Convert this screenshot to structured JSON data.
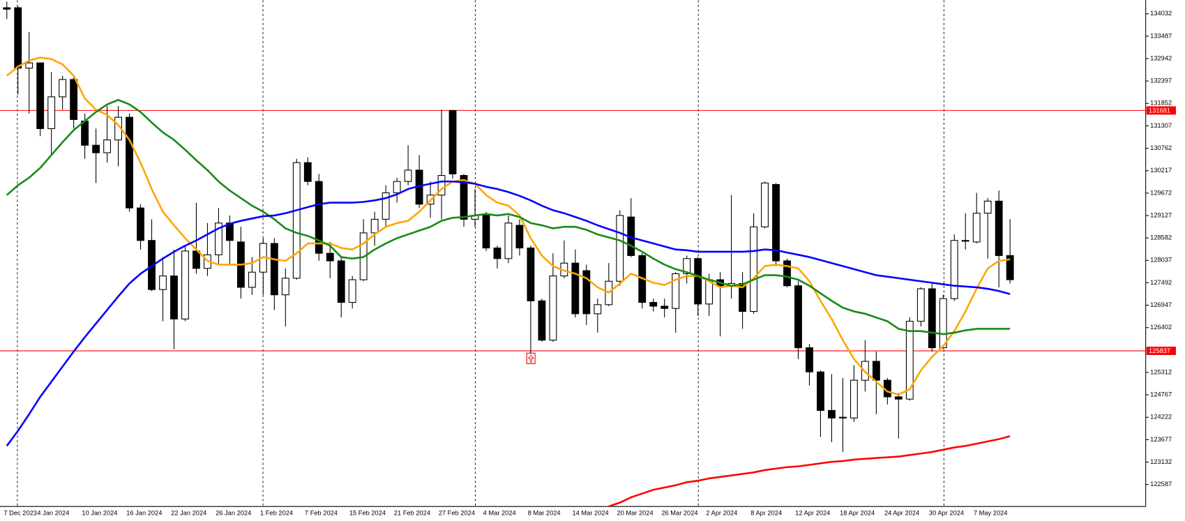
{
  "chart_data": {
    "type": "candlestick",
    "categories": [
      "7 Dec 2023",
      null,
      null,
      "4 Jan 2024",
      null,
      null,
      null,
      "10 Jan 2024",
      null,
      null,
      null,
      "16 Jan 2024",
      null,
      null,
      null,
      "22 Jan 2024",
      null,
      null,
      null,
      "26 Jan 2024",
      null,
      null,
      null,
      "1 Feb 2024",
      null,
      null,
      null,
      "7 Feb 2024",
      null,
      null,
      null,
      "15 Feb 2024",
      null,
      null,
      null,
      "21 Feb 2024",
      null,
      null,
      null,
      "27 Feb 2024",
      null,
      null,
      null,
      "4 Mar 2024",
      null,
      null,
      null,
      "8 Mar 2024",
      null,
      null,
      null,
      "14 Mar 2024",
      null,
      null,
      null,
      "20 Mar 2024",
      null,
      null,
      null,
      "26 Mar 2024",
      null,
      null,
      null,
      "2 Apr 2024",
      null,
      null,
      null,
      "8 Apr 2024",
      null,
      null,
      null,
      "12 Apr 2024",
      null,
      null,
      null,
      "18 Apr 2024",
      null,
      null,
      null,
      "24 Apr 2024",
      null,
      null,
      null,
      "30 Apr 2024",
      null,
      null,
      null,
      "7 May 2024",
      null,
      null,
      null
    ],
    "open": [
      134179,
      134179,
      132710,
      132838,
      131240,
      132012,
      132434,
      131424,
      130836,
      130653,
      130965,
      131516,
      129311,
      128521,
      127327,
      127658,
      126611,
      128264,
      127842,
      128172,
      128944,
      128484,
      127382,
      127750,
      128448,
      127199,
      127603,
      130413,
      129955,
      128209,
      128025,
      127015,
      127566,
      128705,
      129036,
      129679,
      129955,
      130230,
      129403,
      129623,
      131681,
      130101,
      129036,
      129164,
      128338,
      128080,
      128889,
      128338,
      127052,
      126097,
      127658,
      127970,
      127787,
      126739,
      126960,
      127529,
      129091,
      128154,
      127015,
      126923,
      126868,
      127713,
      128080,
      126976,
      127566,
      127419,
      127475,
      126795,
      128852,
      129881,
      128025,
      127419,
      125913,
      125325,
      124388,
      124204,
      124204,
      125123,
      125582,
      125123,
      124719,
      124664,
      126556,
      127346,
      125913,
      127107,
      128503,
      128484,
      129183,
      129477,
      128154
    ],
    "high": [
      134326,
      134216,
      133591,
      132838,
      132618,
      132526,
      132526,
      131608,
      131240,
      131791,
      131791,
      131608,
      129403,
      129036,
      128117,
      128301,
      128393,
      129440,
      128944,
      129311,
      129128,
      128852,
      128117,
      128576,
      128576,
      127842,
      130505,
      130542,
      130138,
      128485,
      128117,
      127658,
      129036,
      129219,
      129862,
      130046,
      130836,
      130597,
      129955,
      131699,
      131681,
      130138,
      129771,
      129219,
      128393,
      129128,
      129036,
      128393,
      127107,
      128209,
      128521,
      128301,
      127934,
      127107,
      127970,
      129256,
      129550,
      128209,
      127107,
      127107,
      127750,
      128154,
      128117,
      127713,
      127750,
      129624,
      127750,
      129183,
      129954,
      129918,
      128080,
      127530,
      126005,
      125362,
      125270,
      125178,
      125490,
      126097,
      125821,
      125178,
      124811,
      126648,
      127382,
      127474,
      127199,
      128668,
      129183,
      129679,
      129550,
      129734,
      129036
    ],
    "low": [
      133904,
      132067,
      131608,
      131056,
      130597,
      131699,
      131240,
      130505,
      129918,
      130413,
      130322,
      129219,
      128301,
      127290,
      126556,
      125876,
      126556,
      127713,
      127658,
      127934,
      127934,
      127107,
      127199,
      127199,
      126831,
      126427,
      127566,
      129862,
      128025,
      127603,
      126648,
      126868,
      127530,
      128393,
      128852,
      129440,
      129862,
      129311,
      129073,
      129036,
      130028,
      128852,
      128852,
      128264,
      127842,
      127970,
      128154,
      125766,
      126060,
      126060,
      127603,
      126648,
      126464,
      126280,
      126923,
      127419,
      128117,
      126868,
      126795,
      126648,
      126280,
      127474,
      126685,
      126685,
      126188,
      127107,
      126372,
      126739,
      128815,
      127897,
      127382,
      125637,
      124994,
      123745,
      123616,
      123377,
      124112,
      124847,
      124296,
      124535,
      123708,
      124627,
      126427,
      125821,
      125876,
      127052,
      128301,
      128448,
      128080,
      127382,
      127474
    ],
    "close": [
      134143,
      132710,
      132838,
      131240,
      132012,
      132434,
      131461,
      130836,
      130653,
      130965,
      131516,
      129311,
      128521,
      127327,
      127658,
      126611,
      128264,
      127842,
      128172,
      128944,
      128521,
      127382,
      127750,
      128448,
      127199,
      127603,
      130413,
      129955,
      128209,
      128025,
      127015,
      127566,
      128705,
      129036,
      129679,
      129955,
      130230,
      129403,
      129623,
      130101,
      130138,
      129036,
      129128,
      128338,
      128080,
      128944,
      128338,
      127052,
      126097,
      127658,
      127970,
      126739,
      126739,
      126960,
      127529,
      129128,
      128154,
      127015,
      126923,
      126868,
      127713,
      128080,
      126976,
      127566,
      127419,
      127475,
      126795,
      128852,
      129918,
      128025,
      127419,
      125913,
      125325,
      124388,
      124204,
      124223,
      125123,
      125582,
      125123,
      124719,
      124664,
      126556,
      127346,
      125913,
      127107,
      128521,
      128521,
      129183,
      129477,
      128154,
      127566
    ],
    "up_color": "#ffffff",
    "down_color": "#000000",
    "lines": [
      {
        "color": "#ffa500",
        "values": [
          132526,
          132746,
          132893,
          132967,
          132930,
          132802,
          132526,
          131975,
          131699,
          131571,
          131332,
          130965,
          130413,
          129771,
          129219,
          128889,
          128576,
          128301,
          128025,
          127933,
          127933,
          127933,
          127970,
          128117,
          128062,
          128025,
          128209,
          128448,
          128448,
          128448,
          128338,
          128301,
          128448,
          128668,
          128852,
          128944,
          128999,
          129219,
          129495,
          129771,
          129954,
          129991,
          129899,
          129624,
          129440,
          129366,
          129128,
          128576,
          128154,
          127897,
          127787,
          127713,
          127603,
          127382,
          127254,
          127474,
          127713,
          127603,
          127493,
          127438,
          127566,
          127658,
          127658,
          127529,
          127382,
          127419,
          127382,
          127603,
          127897,
          127933,
          127897,
          127842,
          127529,
          127052,
          126611,
          126096,
          125637,
          125325,
          125086,
          124847,
          124774,
          124902,
          125362,
          125692,
          125950,
          126317,
          126795,
          127346,
          127842,
          128025,
          128062
        ]
      },
      {
        "color": "#158a15",
        "values": [
          129624,
          129862,
          130046,
          130285,
          130597,
          130909,
          131203,
          131424,
          131644,
          131828,
          131938,
          131828,
          131644,
          131387,
          131148,
          130965,
          130726,
          130469,
          130230,
          129954,
          129734,
          129550,
          129366,
          129219,
          129036,
          128815,
          128705,
          128632,
          128521,
          128393,
          128117,
          128080,
          128117,
          128301,
          128448,
          128576,
          128668,
          128760,
          128852,
          128999,
          129072,
          129091,
          129128,
          129164,
          129128,
          129164,
          129091,
          128944,
          128889,
          128815,
          128852,
          128852,
          128779,
          128668,
          128595,
          128521,
          128393,
          128246,
          128080,
          127933,
          127823,
          127750,
          127658,
          127566,
          127493,
          127419,
          127456,
          127566,
          127676,
          127676,
          127640,
          127566,
          127419,
          127235,
          127052,
          126886,
          126795,
          126739,
          126648,
          126556,
          126372,
          126317,
          126317,
          126280,
          126243,
          126280,
          126335,
          126372,
          126372,
          126372,
          126372
        ]
      },
      {
        "color": "#0000ff",
        "values": [
          123525,
          123892,
          124296,
          124719,
          125086,
          125454,
          125821,
          126170,
          126501,
          126831,
          127162,
          127474,
          127713,
          127897,
          128080,
          128246,
          128393,
          128521,
          128668,
          128815,
          128925,
          128999,
          129054,
          129109,
          129128,
          129183,
          129256,
          129330,
          129403,
          129440,
          129440,
          129440,
          129458,
          129495,
          129550,
          129642,
          129771,
          129844,
          129899,
          129954,
          129954,
          129936,
          129899,
          129826,
          129771,
          129697,
          129605,
          129495,
          129366,
          129256,
          129183,
          129091,
          128999,
          128889,
          128797,
          128705,
          128595,
          128521,
          128448,
          128374,
          128301,
          128283,
          128246,
          128246,
          128246,
          128246,
          128246,
          128264,
          128301,
          128283,
          128227,
          128172,
          128117,
          128044,
          127970,
          127897,
          127823,
          127750,
          127676,
          127640,
          127603,
          127566,
          127529,
          127493,
          127456,
          127419,
          127401,
          127382,
          127346,
          127291,
          127217
        ]
      },
      {
        "color": "#ff0000",
        "values": [
          null,
          null,
          null,
          null,
          null,
          null,
          null,
          null,
          null,
          null,
          null,
          null,
          null,
          null,
          null,
          null,
          null,
          null,
          null,
          null,
          null,
          null,
          null,
          null,
          null,
          null,
          null,
          null,
          null,
          null,
          null,
          null,
          null,
          null,
          null,
          null,
          null,
          null,
          null,
          null,
          null,
          null,
          null,
          null,
          null,
          null,
          null,
          null,
          null,
          null,
          null,
          null,
          null,
          null,
          122055,
          122147,
          122276,
          122367,
          122459,
          122514,
          122569,
          122643,
          122680,
          122735,
          122771,
          122808,
          122845,
          122882,
          122937,
          122974,
          123010,
          123029,
          123065,
          123102,
          123139,
          123157,
          123194,
          123212,
          123231,
          123249,
          123267,
          123304,
          123341,
          123378,
          123433,
          123488,
          123525,
          123580,
          123635,
          123690,
          123763
        ]
      }
    ],
    "hlines": {
      "color": "#ff0000",
      "values": [
        131681,
        125837
      ]
    },
    "ylim": [
      122053,
      134363
    ],
    "yticks": [
      134032,
      133487,
      132942,
      132397,
      131852,
      131307,
      130762,
      130217,
      129672,
      129127,
      128582,
      128037,
      127492,
      126947,
      126402,
      125312,
      124767,
      124222,
      123677,
      123132,
      122587
    ],
    "y_axis_side": "right"
  }
}
